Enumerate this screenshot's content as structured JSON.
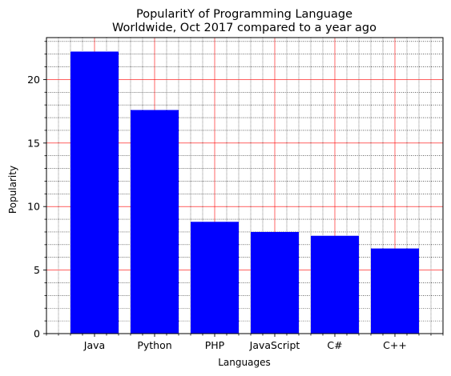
{
  "chart_data": {
    "type": "bar",
    "title": "PopularitY of Programming Language",
    "subtitle": "Worldwide, Oct 2017 compared to a year ago",
    "xlabel": "Languages",
    "ylabel": "Popularity",
    "categories": [
      "Java",
      "Python",
      "PHP",
      "JavaScript",
      "C#",
      "C++"
    ],
    "values": [
      22.2,
      17.6,
      8.8,
      8.0,
      7.7,
      6.7
    ],
    "ylim": [
      0,
      23.3
    ],
    "yticks": [
      "0",
      "5",
      "10",
      "15",
      "20"
    ],
    "bar_color": "#0000ff",
    "major_grid_color": "#ff0000",
    "minor_grid_color": "#000000",
    "grid": true,
    "minor_grid": true
  }
}
